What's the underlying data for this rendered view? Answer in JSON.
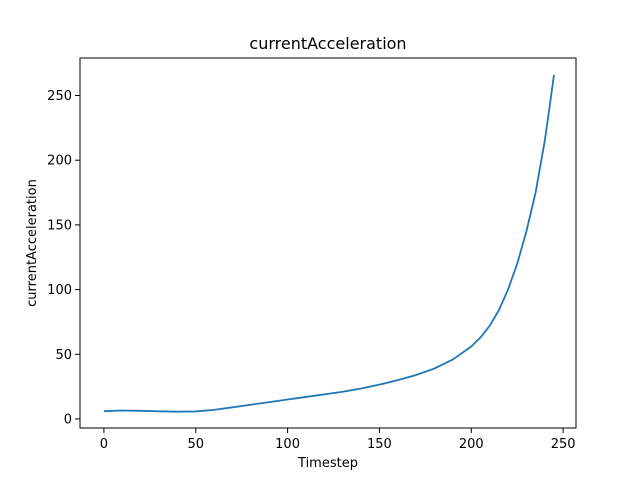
{
  "chart_data": {
    "type": "line",
    "title": "currentAcceleration",
    "xlabel": "Timestep",
    "ylabel": "currentAcceleration",
    "xlim": [
      -13,
      257
    ],
    "ylim": [
      -7,
      279
    ],
    "xticks": [
      0,
      50,
      100,
      150,
      200,
      250
    ],
    "yticks": [
      0,
      50,
      100,
      150,
      200,
      250
    ],
    "grid": false,
    "series": [
      {
        "color": "#1f77b4",
        "x": [
          0,
          10,
          20,
          30,
          40,
          50,
          60,
          70,
          80,
          90,
          100,
          110,
          120,
          130,
          140,
          150,
          160,
          170,
          180,
          190,
          200,
          205,
          210,
          215,
          220,
          225,
          230,
          235,
          240,
          243,
          245
        ],
        "y": [
          6,
          6.5,
          6.3,
          5.9,
          5.6,
          5.8,
          7,
          9,
          11,
          13,
          15,
          17,
          19,
          21,
          23.5,
          26.5,
          30,
          34,
          39,
          46,
          56,
          63,
          72,
          84,
          100,
          120,
          145,
          175,
          215,
          245,
          266
        ]
      }
    ]
  }
}
